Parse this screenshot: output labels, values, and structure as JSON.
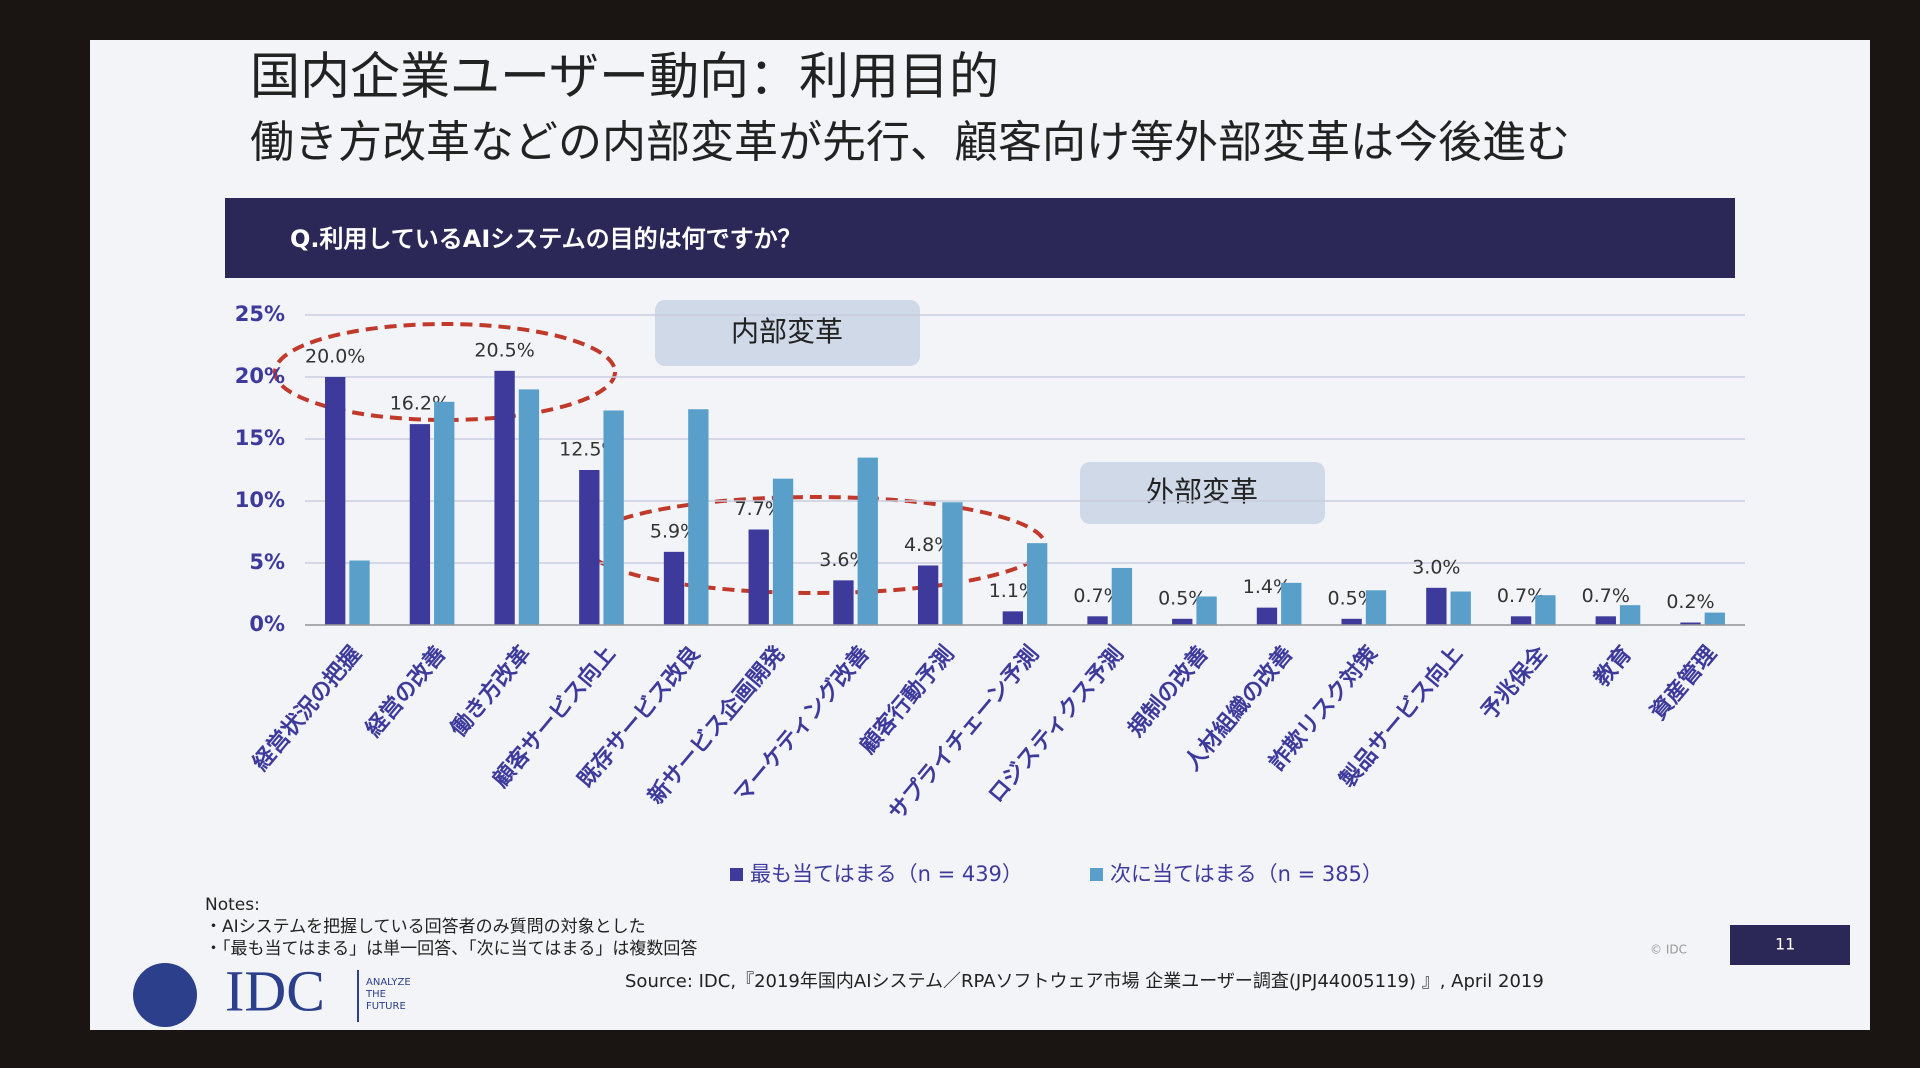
{
  "chart_data": {
    "type": "bar",
    "title": "国内企業ユーザー動向：利用目的",
    "subtitle": "働き方改革などの内部変革が先行、顧客向け等外部変革は今後進む",
    "question": "Q.利用しているAIシステムの目的は何ですか？",
    "annotations": [
      "内部変革",
      "外部変革"
    ],
    "categories": [
      "経営状況の把握",
      "経営の改善",
      "働き方改革",
      "顧客サービス向上",
      "既存サービス改良",
      "新サービス企画開発",
      "マーケティング改善",
      "顧客行動予測",
      "サプライチェーン予測",
      "ロジスティクス予測",
      "規制の改善",
      "人材組織の改善",
      "詐欺リスク対策",
      "製品サービス向上",
      "予兆保全",
      "教育",
      "資産管理"
    ],
    "series": [
      {
        "name": "最も当てはまる（n = 439）",
        "color": "#3d3a9c",
        "values": [
          20.0,
          16.2,
          20.5,
          12.5,
          5.9,
          7.7,
          3.6,
          4.8,
          1.1,
          0.7,
          0.5,
          1.4,
          0.5,
          3.0,
          0.7,
          0.7,
          0.2
        ],
        "value_labels": [
          "20.0%",
          "16.2%",
          "20.5%",
          "12.5%",
          "5.9%",
          "7.7%",
          "3.6%",
          "4.8%",
          "1.1%",
          "0.7%",
          "0.5%",
          "1.4%",
          "0.5%",
          "3.0%",
          "0.7%",
          "0.7%",
          "0.2%"
        ]
      },
      {
        "name": "次に当てはまる（n = 385）",
        "color": "#5a9fc9",
        "values": [
          5.2,
          18.0,
          19.0,
          17.3,
          17.4,
          11.8,
          13.5,
          9.9,
          6.6,
          4.6,
          2.3,
          3.4,
          2.8,
          2.7,
          2.4,
          1.6,
          1.0
        ]
      }
    ],
    "ylim": [
      0,
      25
    ],
    "yticks": [
      {
        "value": 0,
        "label": "0%"
      },
      {
        "value": 5,
        "label": "5%"
      },
      {
        "value": 10,
        "label": "10%"
      },
      {
        "value": 15,
        "label": "15%"
      },
      {
        "value": 20,
        "label": "20%"
      },
      {
        "value": 25,
        "label": "25%"
      }
    ],
    "grid": true,
    "legend": "bottom",
    "notes": [
      "Notes:",
      "・AIシステムを把握している回答者のみ質問の対象とした",
      "・「最も当てはまる」は単一回答、「次に当てはまる」は複数回答"
    ],
    "source": "Source: IDC,『2019年国内AIシステム／RPAソフトウェア市場 企業ユーザー調査(JPJ44005119) 』, April 2019",
    "logo": "IDC",
    "tagline": [
      "ANALYZE",
      "THE",
      "FUTURE"
    ],
    "copyright": "© IDC",
    "page_number": "11"
  }
}
